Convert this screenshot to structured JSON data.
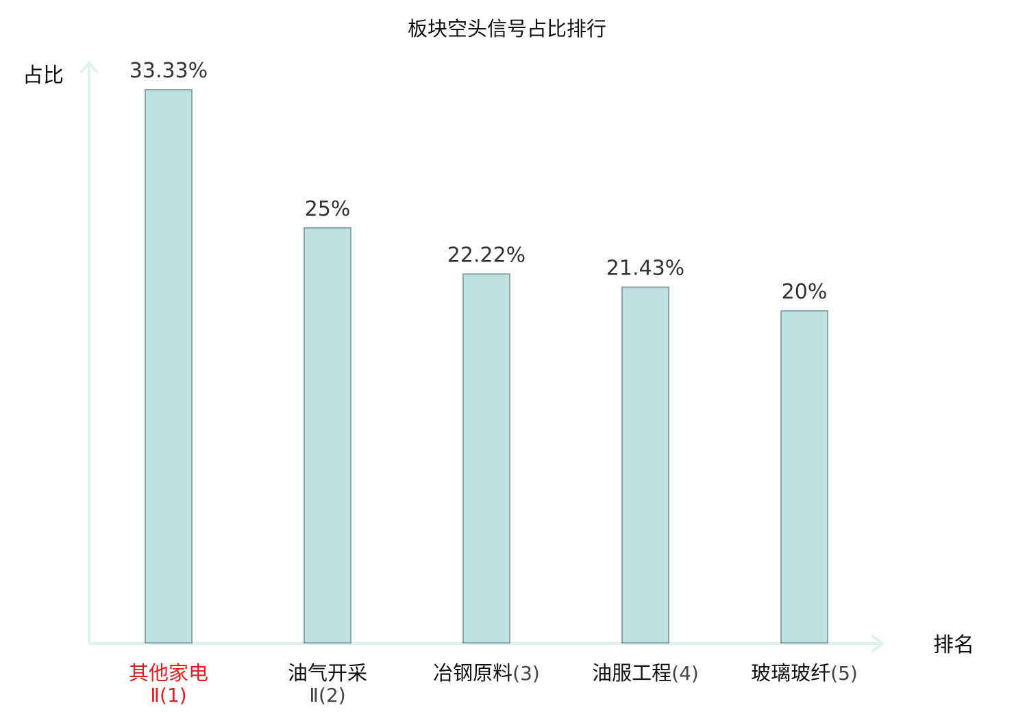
{
  "chart_data": {
    "type": "bar",
    "title": "板块空头信号占比排行",
    "ylabel": "占比",
    "xlabel": "排名",
    "ylim": [
      0,
      35
    ],
    "grid": false,
    "categories": [
      "其他家电",
      "油气开采",
      "冶钢原料",
      "油服工程",
      "玻璃玻纤"
    ],
    "rank_labels": [
      "Ⅱ(1)",
      "Ⅱ(2)",
      "(3)",
      "(4)",
      "(5)"
    ],
    "values": [
      33.33,
      25,
      22.22,
      21.43,
      20
    ],
    "value_labels": [
      "33.33%",
      "25%",
      "22.22%",
      "21.43%",
      "20%"
    ],
    "highlight_index": 0,
    "colors": {
      "bar_fill": "#bde0e2",
      "bar_stroke": "#8aa6a8",
      "axis": "#e0f2f0",
      "highlight_text": "#e02020",
      "normal_text": "#111111",
      "rank_text": "#444444"
    }
  }
}
